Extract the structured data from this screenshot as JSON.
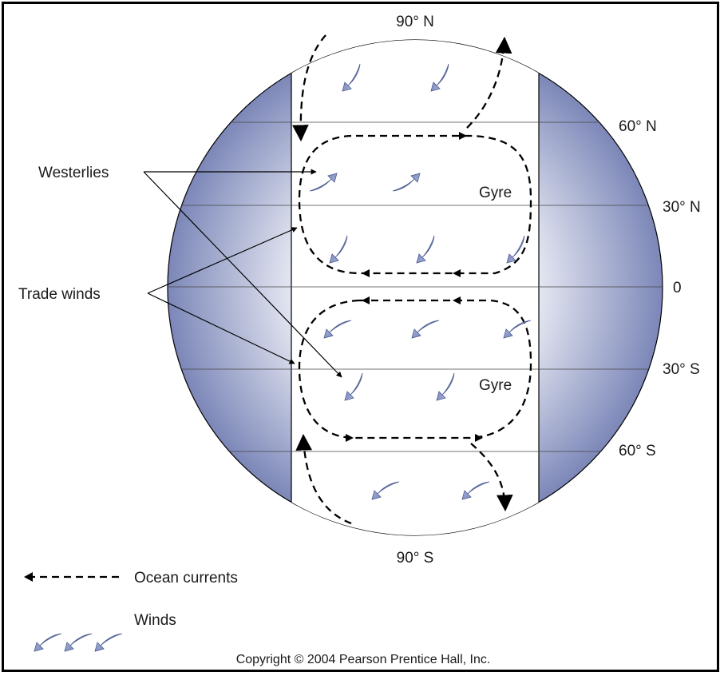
{
  "diagram": {
    "latitudes": {
      "n90": "90° N",
      "n60": "60° N",
      "n30": "30° N",
      "eq": "0",
      "s30": "30° S",
      "s60": "60° S",
      "s90": "90° S"
    },
    "labels": {
      "westerlies": "Westerlies",
      "trade_winds": "Trade winds",
      "gyre_north": "Gyre",
      "gyre_south": "Gyre"
    },
    "legend": {
      "ocean_currents": "Ocean currents",
      "winds": "Winds"
    },
    "copyright": "Copyright © 2004 Pearson Prentice Hall, Inc.",
    "colors": {
      "globe_edge": "#7c87b8",
      "globe_center": "#ffffff",
      "arrow_fill": "#7f8fc4",
      "line": "#000000"
    }
  }
}
